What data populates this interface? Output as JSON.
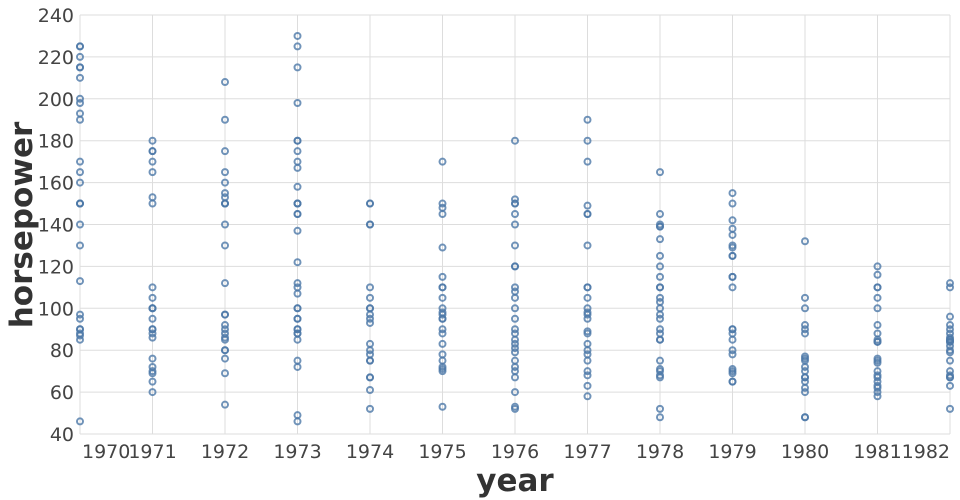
{
  "chart_data": {
    "type": "scatter",
    "xlabel": "year",
    "ylabel": "horsepower",
    "xlim": [
      1970,
      1982
    ],
    "ylim": [
      40,
      240
    ],
    "x_ticks": [
      "1970",
      "1971",
      "1972",
      "1973",
      "1974",
      "1975",
      "1976",
      "1977",
      "1978",
      "1979",
      "1980",
      "1981",
      "1982"
    ],
    "y_ticks": [
      40,
      60,
      80,
      100,
      120,
      140,
      160,
      180,
      200,
      220,
      240
    ],
    "grid": true,
    "marker": "open circle",
    "point_color": "#4c78a8",
    "points_by_year": [
      {
        "year": 1970,
        "hp": [
          225,
          225,
          220,
          215,
          215,
          210,
          200,
          198,
          193,
          190,
          170,
          165,
          160,
          150,
          150,
          150,
          140,
          130,
          113,
          97,
          95,
          90,
          90,
          88,
          87,
          85,
          46
        ]
      },
      {
        "year": 1971,
        "hp": [
          180,
          175,
          175,
          170,
          165,
          153,
          150,
          110,
          105,
          100,
          100,
          100,
          95,
          90,
          90,
          88,
          86,
          76,
          72,
          70,
          69,
          65,
          60
        ]
      },
      {
        "year": 1972,
        "hp": [
          208,
          190,
          175,
          165,
          160,
          155,
          153,
          150,
          150,
          150,
          140,
          130,
          112,
          97,
          97,
          92,
          90,
          88,
          86,
          85,
          80,
          80,
          76,
          69,
          54
        ]
      },
      {
        "year": 1973,
        "hp": [
          230,
          225,
          215,
          198,
          180,
          180,
          175,
          170,
          167,
          158,
          150,
          150,
          150,
          145,
          145,
          137,
          122,
          112,
          110,
          107,
          100,
          100,
          95,
          95,
          90,
          90,
          88,
          88,
          85,
          75,
          72,
          49,
          46
        ]
      },
      {
        "year": 1974,
        "hp": [
          150,
          150,
          140,
          140,
          110,
          105,
          100,
          100,
          97,
          95,
          93,
          83,
          80,
          78,
          75,
          75,
          67,
          67,
          61,
          52
        ]
      },
      {
        "year": 1975,
        "hp": [
          170,
          150,
          148,
          145,
          129,
          115,
          110,
          110,
          105,
          100,
          98,
          97,
          95,
          95,
          90,
          88,
          83,
          78,
          75,
          72,
          71,
          70,
          53
        ]
      },
      {
        "year": 1976,
        "hp": [
          180,
          152,
          150,
          150,
          145,
          140,
          130,
          120,
          120,
          110,
          108,
          105,
          100,
          95,
          90,
          88,
          85,
          83,
          81,
          79,
          75,
          72,
          70,
          67,
          60,
          53,
          52
        ]
      },
      {
        "year": 1977,
        "hp": [
          190,
          180,
          170,
          149,
          145,
          145,
          130,
          110,
          110,
          105,
          100,
          98,
          97,
          95,
          89,
          88,
          83,
          80,
          78,
          75,
          70,
          68,
          63,
          58
        ]
      },
      {
        "year": 1978,
        "hp": [
          165,
          145,
          140,
          139,
          139,
          133,
          125,
          120,
          115,
          110,
          110,
          105,
          103,
          100,
          97,
          95,
          90,
          88,
          85,
          85,
          75,
          71,
          70,
          68,
          67,
          52,
          48
        ]
      },
      {
        "year": 1979,
        "hp": [
          155,
          150,
          142,
          138,
          135,
          130,
          129,
          125,
          125,
          115,
          115,
          110,
          90,
          90,
          88,
          85,
          80,
          78,
          71,
          70,
          69,
          65,
          65
        ]
      },
      {
        "year": 1980,
        "hp": [
          132,
          105,
          100,
          92,
          90,
          88,
          77,
          76,
          75,
          72,
          70,
          67,
          67,
          65,
          62,
          60,
          48,
          48
        ]
      },
      {
        "year": 1981,
        "hp": [
          120,
          116,
          110,
          110,
          105,
          100,
          92,
          88,
          85,
          84,
          84,
          76,
          75,
          74,
          70,
          68,
          67,
          65,
          63,
          62,
          60,
          58
        ]
      },
      {
        "year": 1982,
        "hp": [
          112,
          110,
          96,
          92,
          90,
          88,
          86,
          85,
          85,
          84,
          84,
          82,
          80,
          79,
          75,
          70,
          68,
          67,
          67,
          63,
          52
        ]
      }
    ]
  }
}
